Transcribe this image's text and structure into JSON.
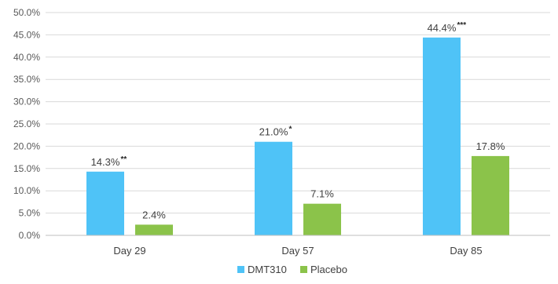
{
  "chart_data": {
    "type": "bar",
    "categories": [
      "Day 29",
      "Day 57",
      "Day 85"
    ],
    "series": [
      {
        "name": "DMT310",
        "color": "#4FC3F7",
        "values": [
          14.3,
          21.0,
          44.4
        ],
        "labels": [
          "14.3%",
          "21.0%",
          "44.4%"
        ],
        "significance": [
          "**",
          "*",
          "***"
        ]
      },
      {
        "name": "Placebo",
        "color": "#8BC34A",
        "values": [
          2.4,
          7.1,
          17.8
        ],
        "labels": [
          "2.4%",
          "7.1%",
          "17.8%"
        ],
        "significance": [
          "",
          "",
          ""
        ]
      }
    ],
    "yticks": [
      "0.0%",
      "5.0%",
      "10.0%",
      "15.0%",
      "20.0%",
      "25.0%",
      "30.0%",
      "35.0%",
      "40.0%",
      "45.0%",
      "50.0%"
    ],
    "ylim": [
      0,
      50
    ],
    "grid": true,
    "gridline_color": "#d9d9d9",
    "legend_position": "bottom",
    "title": "",
    "xlabel": "",
    "ylabel": ""
  }
}
